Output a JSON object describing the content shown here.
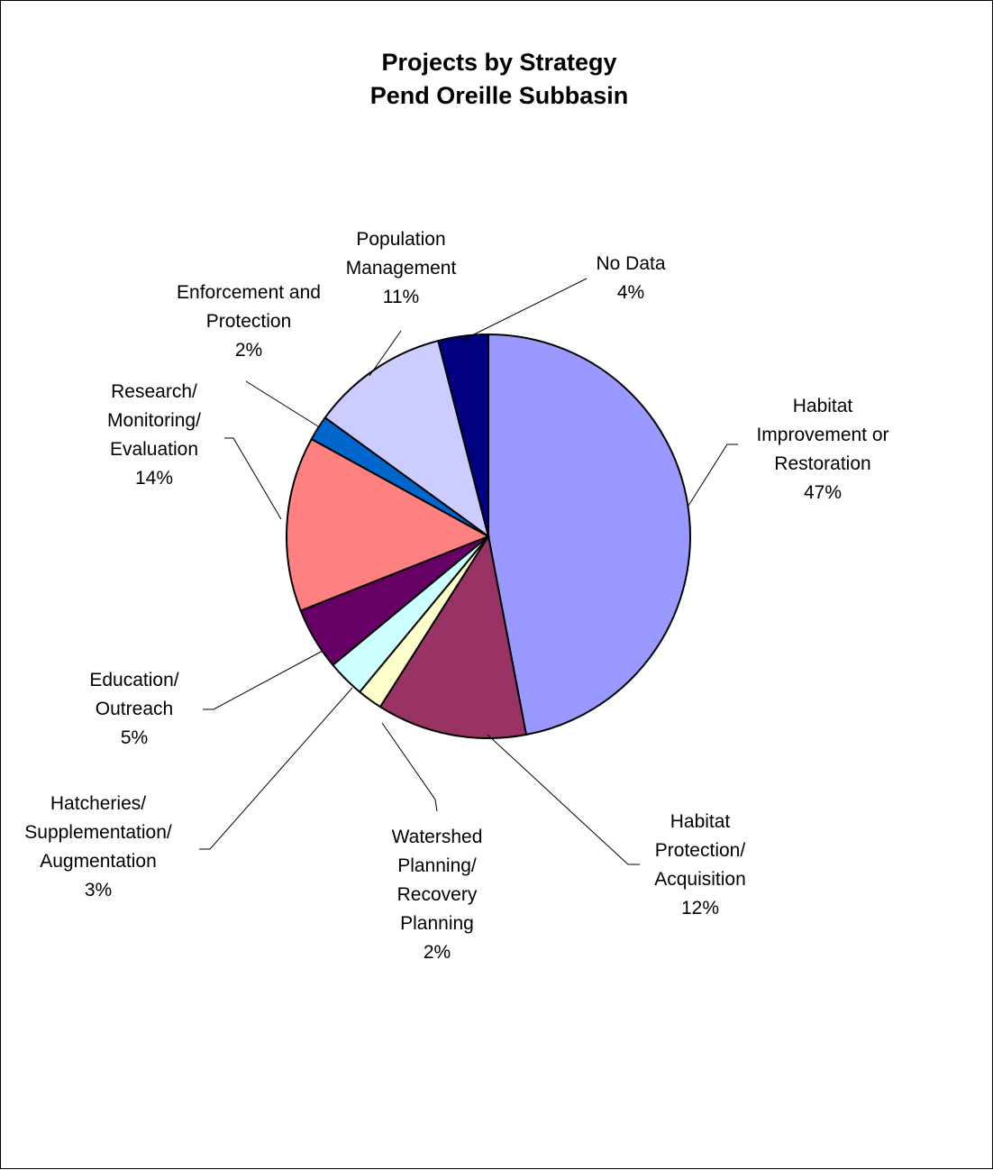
{
  "chart_data": {
    "type": "pie",
    "title": [
      "Projects by Strategy",
      "Pend Oreille Subbasin"
    ],
    "start_angle_deg": 0,
    "direction": "clockwise",
    "slices": [
      {
        "label": [
          "Habitat",
          "Improvement or",
          "Restoration"
        ],
        "value": 47,
        "display": "47%",
        "color": "#9999FF"
      },
      {
        "label": [
          "Habitat",
          "Protection/",
          "Acquisition"
        ],
        "value": 12,
        "display": "12%",
        "color": "#993366"
      },
      {
        "label": [
          "Watershed",
          "Planning/",
          "Recovery",
          "Planning"
        ],
        "value": 2,
        "display": "2%",
        "color": "#FFFFCC"
      },
      {
        "label": [
          "Hatcheries/",
          "Supplementation/",
          "Augmentation"
        ],
        "value": 3,
        "display": "3%",
        "color": "#CCFFFF"
      },
      {
        "label": [
          "Education/",
          "Outreach"
        ],
        "value": 5,
        "display": "5%",
        "color": "#660066"
      },
      {
        "label": [
          "Research/",
          "Monitoring/",
          "Evaluation"
        ],
        "value": 14,
        "display": "14%",
        "color": "#FF8080"
      },
      {
        "label": [
          "Enforcement and",
          "Protection"
        ],
        "value": 2,
        "display": "2%",
        "color": "#0066CC"
      },
      {
        "label": [
          "Population",
          "Management"
        ],
        "value": 11,
        "display": "11%",
        "color": "#CCCCFF"
      },
      {
        "label": [
          "No Data"
        ],
        "value": 4,
        "display": "4%",
        "color": "#000080"
      }
    ]
  }
}
